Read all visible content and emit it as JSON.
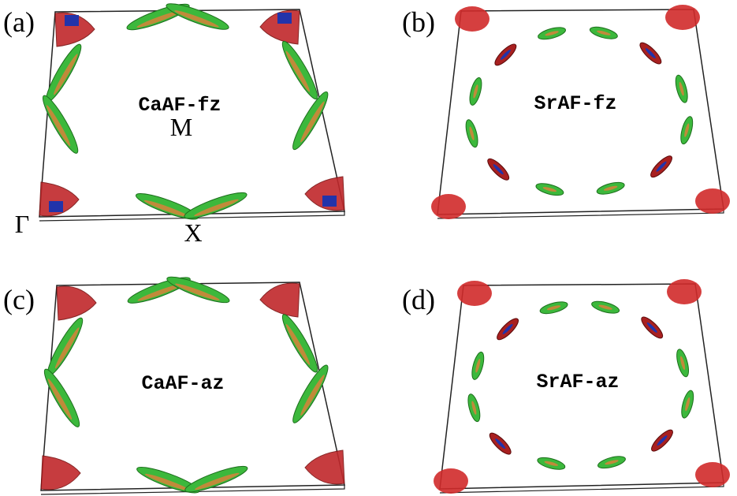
{
  "panels": [
    {
      "label": "(a)",
      "name": "CaAF-fz"
    },
    {
      "label": "(b)",
      "name": "SrAF-fz"
    },
    {
      "label": "(c)",
      "name": "CaAF-az"
    },
    {
      "label": "(d)",
      "name": "SrAF-az"
    }
  ],
  "points": {
    "gamma": "Γ",
    "m": "M",
    "x": "X"
  }
}
